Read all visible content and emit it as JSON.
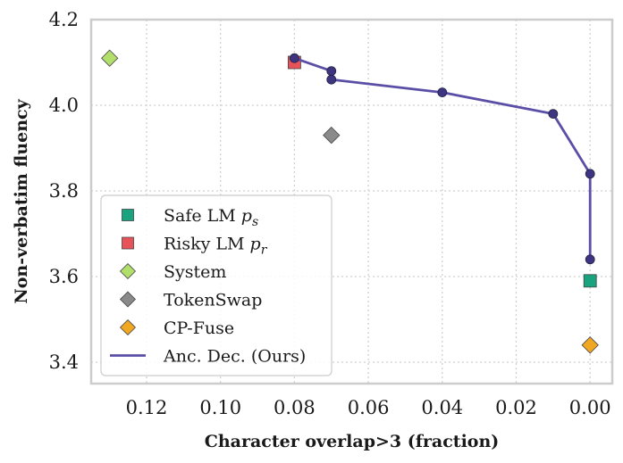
{
  "chart_data": {
    "type": "scatter",
    "xlabel": "Character overlap>3 (fraction)",
    "ylabel": "Non-verbatim fluency",
    "xlim": [
      0.135,
      -0.006
    ],
    "ylim": [
      3.35,
      4.2
    ],
    "x_reversed": true,
    "xticks": [
      "0.12",
      "0.10",
      "0.08",
      "0.06",
      "0.04",
      "0.02",
      "0.00"
    ],
    "xtick_values": [
      0.12,
      0.1,
      0.08,
      0.06,
      0.04,
      0.02,
      0.0
    ],
    "yticks": [
      "3.4",
      "3.6",
      "3.8",
      "4.0",
      "4.2"
    ],
    "ytick_values": [
      3.4,
      3.6,
      3.8,
      4.0,
      4.2
    ],
    "grid": true,
    "legend_position": "lower-left",
    "series": [
      {
        "name": "Safe LM p_s",
        "legend_main": "Safe LM ",
        "legend_var": "p",
        "legend_sub": "s",
        "marker": "square",
        "color": "#1aa37f",
        "points": [
          {
            "x": 0.0,
            "y": 3.59
          }
        ]
      },
      {
        "name": "Risky LM p_r",
        "legend_main": "Risky LM ",
        "legend_var": "p",
        "legend_sub": "r",
        "marker": "square",
        "color": "#e8535a",
        "points": [
          {
            "x": 0.08,
            "y": 4.1
          }
        ]
      },
      {
        "name": "System",
        "legend_main": "System",
        "marker": "diamond",
        "color": "#b2df6b",
        "points": [
          {
            "x": 0.13,
            "y": 4.11
          }
        ]
      },
      {
        "name": "TokenSwap",
        "legend_main": "TokenSwap",
        "marker": "diamond",
        "color": "#8a8a8a",
        "points": [
          {
            "x": 0.07,
            "y": 3.93
          }
        ]
      },
      {
        "name": "CP-Fuse",
        "legend_main": "CP-Fuse",
        "marker": "diamond",
        "color": "#f0a823",
        "points": [
          {
            "x": 0.0,
            "y": 3.44
          }
        ]
      },
      {
        "name": "Anc. Dec. (Ours)",
        "legend_main": "Anc. Dec. (Ours)",
        "marker": "line-circle",
        "color": "#5a4ea6",
        "point_color": "#3d3580",
        "points": [
          {
            "x": 0.08,
            "y": 4.11
          },
          {
            "x": 0.07,
            "y": 4.08
          },
          {
            "x": 0.07,
            "y": 4.06
          },
          {
            "x": 0.04,
            "y": 4.03
          },
          {
            "x": 0.01,
            "y": 3.98
          },
          {
            "x": 0.0,
            "y": 3.84
          },
          {
            "x": 0.0,
            "y": 3.64
          }
        ]
      }
    ]
  }
}
